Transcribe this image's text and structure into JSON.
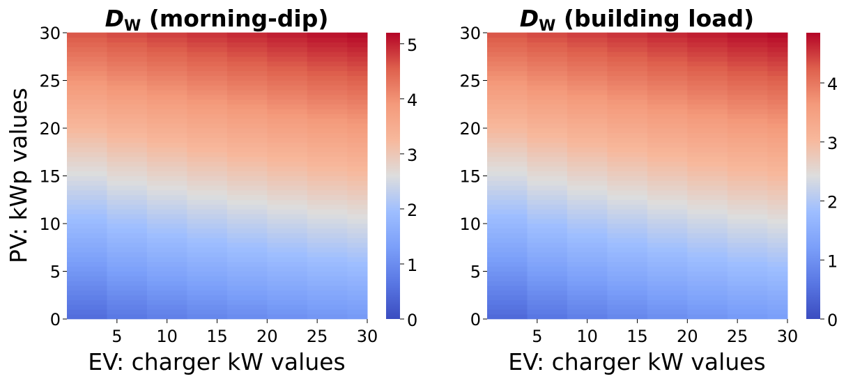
{
  "chart_data": [
    {
      "type": "heatmap",
      "title_symbol": "D",
      "title_subscript": "W",
      "title_rest": " (morning-dip)",
      "xlabel": "EV: charger kW values",
      "ylabel": "PV: kWp values",
      "xlim": [
        0,
        30
      ],
      "ylim": [
        0,
        30
      ],
      "x_ticks": [
        "5",
        "10",
        "15",
        "20",
        "25",
        "30"
      ],
      "y_ticks": [
        "0",
        "5",
        "10",
        "15",
        "20",
        "25",
        "30"
      ],
      "colorbar": {
        "min": 0,
        "max": 5.2,
        "ticks": [
          "0",
          "1",
          "2",
          "3",
          "4",
          "5"
        ]
      },
      "colormap": "coolwarm",
      "ev_bands": [
        0,
        4,
        8,
        12,
        16,
        20,
        24,
        28,
        30
      ],
      "corner_values": {
        "ev0_pv0": 0.3,
        "ev30_pv0": 1.2,
        "ev0_pv30": 4.6,
        "ev30_pv30": 5.2
      }
    },
    {
      "type": "heatmap",
      "title_symbol": "D",
      "title_subscript": "W",
      "title_rest": " (building load)",
      "xlabel": "EV: charger kW values",
      "ylabel": "",
      "xlim": [
        0,
        30
      ],
      "ylim": [
        0,
        30
      ],
      "x_ticks": [
        "5",
        "10",
        "15",
        "20",
        "25",
        "30"
      ],
      "y_ticks": [
        "0",
        "5",
        "10",
        "15",
        "20",
        "25",
        "30"
      ],
      "colorbar": {
        "min": 0,
        "max": 4.85,
        "ticks": [
          "0",
          "1",
          "2",
          "3",
          "4"
        ]
      },
      "colormap": "coolwarm",
      "ev_bands": [
        0,
        4,
        8,
        12,
        16,
        20,
        24,
        28,
        30
      ],
      "corner_values": {
        "ev0_pv0": 0.2,
        "ev30_pv0": 1.2,
        "ev0_pv30": 4.3,
        "ev30_pv30": 4.85
      }
    }
  ]
}
